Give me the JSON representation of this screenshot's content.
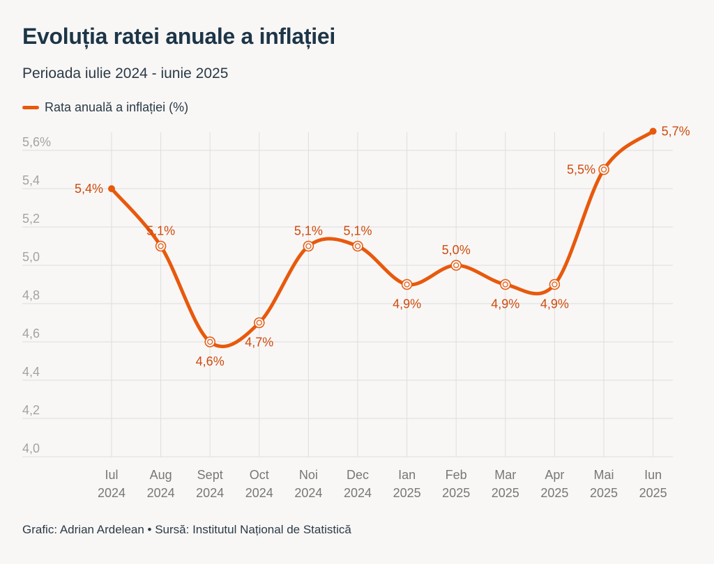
{
  "title": "Evoluția ratei anuale a inflației",
  "subtitle": "Perioada iulie 2024 - iunie 2025",
  "footer": "Grafic: Adrian Ardelean • Sursă: Institutul Național de Statistică",
  "colors": {
    "accent": "#e8590c",
    "label": "#cf4a0c",
    "grid": "#dedede",
    "text": "#1d3547"
  },
  "chart_data": {
    "type": "line",
    "title": "Evoluția ratei anuale a inflației",
    "subtitle": "Perioada iulie 2024 - iunie 2025",
    "categories": [
      [
        "Iul",
        "2024"
      ],
      [
        "Aug",
        "2024"
      ],
      [
        "Sept",
        "2024"
      ],
      [
        "Oct",
        "2024"
      ],
      [
        "Noi",
        "2024"
      ],
      [
        "Dec",
        "2024"
      ],
      [
        "Ian",
        "2025"
      ],
      [
        "Feb",
        "2025"
      ],
      [
        "Mar",
        "2025"
      ],
      [
        "Apr",
        "2025"
      ],
      [
        "Mai",
        "2025"
      ],
      [
        "Iun",
        "2025"
      ]
    ],
    "series": [
      {
        "name": "Rata anuală a inflației (%)",
        "values": [
          5.4,
          5.1,
          4.6,
          4.7,
          5.1,
          5.1,
          4.9,
          5.0,
          4.9,
          4.9,
          5.5,
          5.7
        ],
        "labels": [
          "5,4%",
          "5,1%",
          "4,6%",
          "4,7%",
          "5,1%",
          "5,1%",
          "4,9%",
          "5,0%",
          "4,9%",
          "4,9%",
          "5,5%",
          "5,7%"
        ]
      }
    ],
    "yticks": [
      4.0,
      4.2,
      4.4,
      4.6,
      4.8,
      5.0,
      5.2,
      5.4,
      5.6
    ],
    "ytick_labels": [
      "4,0",
      "4,2",
      "4,4",
      "4,6",
      "4,8",
      "5,0",
      "5,2",
      "5,4",
      "5,6%"
    ],
    "ylim": [
      4.0,
      5.7
    ],
    "grid": true,
    "legend_position": "top-left"
  }
}
